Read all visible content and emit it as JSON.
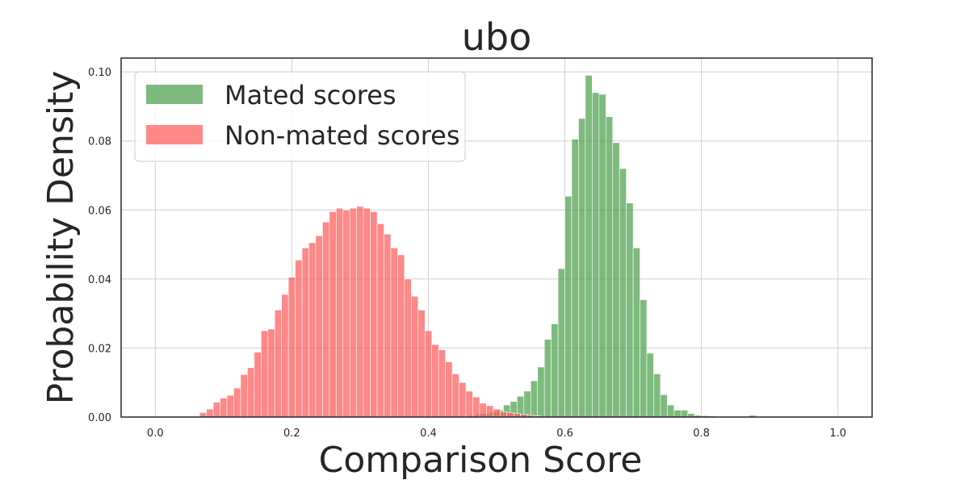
{
  "chart_data": {
    "type": "histogram",
    "title": "ubo",
    "xlabel": "Comparison Score",
    "ylabel": "Probability Density",
    "xlim": [
      -0.05,
      1.05
    ],
    "ylim": [
      0,
      0.104
    ],
    "xticks": [
      "0.0",
      "0.2",
      "0.4",
      "0.6",
      "0.8",
      "1.0"
    ],
    "yticks": [
      "0.00",
      "0.02",
      "0.04",
      "0.06",
      "0.08",
      "0.10"
    ],
    "grid": true,
    "legend_position": "top-left",
    "bin_width": 0.01,
    "series": [
      {
        "name": "Mated scores",
        "color": "#4c9f4c",
        "bin_start": 0.46,
        "values": [
          0.0005,
          0.001,
          0.001,
          0.0015,
          0.002,
          0.0035,
          0.0045,
          0.006,
          0.0075,
          0.0105,
          0.0145,
          0.0225,
          0.027,
          0.043,
          0.064,
          0.0805,
          0.0865,
          0.099,
          0.094,
          0.0935,
          0.087,
          0.0795,
          0.072,
          0.062,
          0.049,
          0.034,
          0.0185,
          0.0125,
          0.0065,
          0.0035,
          0.002,
          0.002,
          0.001,
          0.0005,
          0.0004,
          0.0003,
          0.0002,
          0.0002,
          0.0001,
          0.0001,
          0.0002,
          0.0005
        ]
      },
      {
        "name": "Non-mated scores",
        "color": "#ff5a5a",
        "bin_start": 0.065,
        "values": [
          0.0013,
          0.0023,
          0.0043,
          0.0055,
          0.0063,
          0.0084,
          0.0123,
          0.0143,
          0.0188,
          0.025,
          0.0255,
          0.031,
          0.0355,
          0.0405,
          0.0455,
          0.049,
          0.0505,
          0.0525,
          0.0565,
          0.0595,
          0.0605,
          0.06,
          0.0605,
          0.061,
          0.0605,
          0.0595,
          0.056,
          0.053,
          0.049,
          0.047,
          0.04,
          0.035,
          0.031,
          0.025,
          0.021,
          0.0195,
          0.016,
          0.0125,
          0.01,
          0.0075,
          0.0058,
          0.004,
          0.0033,
          0.0023,
          0.0015,
          0.0013,
          0.001,
          0.0008,
          0.0005,
          0.0003
        ]
      }
    ]
  }
}
